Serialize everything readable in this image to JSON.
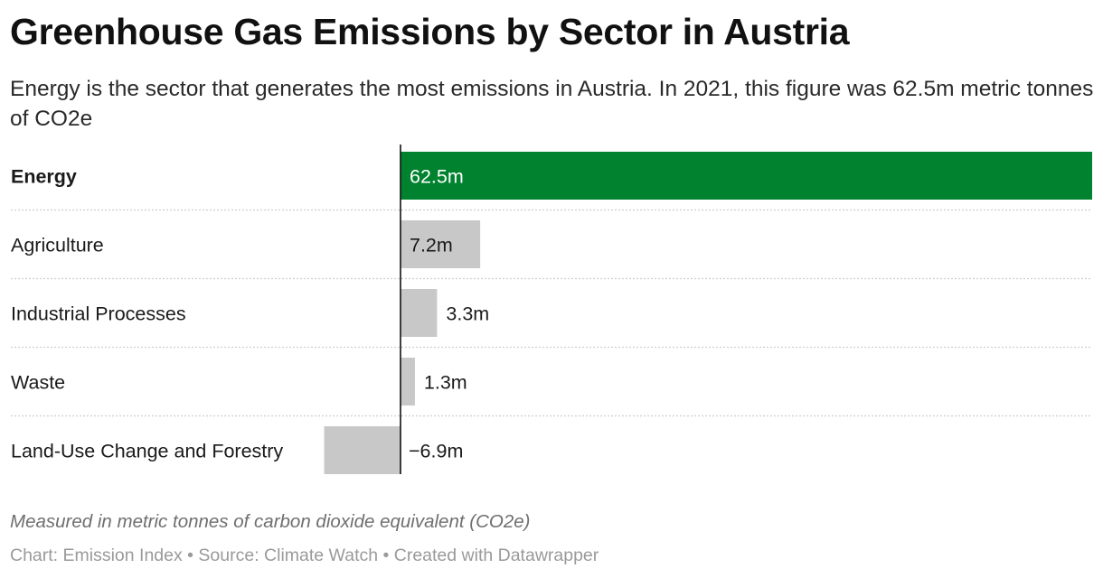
{
  "header": {
    "title": "Greenhouse Gas Emissions by Sector in Austria",
    "subtitle": "Energy is the sector that generates the most emissions in Austria. In 2021, this figure was 62.5m metric tonnes of CO2e"
  },
  "chart_data": {
    "type": "bar",
    "orientation": "horizontal",
    "title": "Greenhouse Gas Emissions by Sector in Austria",
    "xlabel": "",
    "ylabel": "",
    "categories": [
      "Energy",
      "Agriculture",
      "Industrial Processes",
      "Waste",
      "Land-Use Change and Forestry"
    ],
    "values": [
      62.5,
      7.2,
      3.3,
      1.3,
      -6.9
    ],
    "value_labels": [
      "62.5m",
      "7.2m",
      "3.3m",
      "1.3m",
      "−6.9m"
    ],
    "highlight": [
      "Energy"
    ],
    "xlim": [
      -6.9,
      62.5
    ],
    "grid": false,
    "colors": {
      "highlight": "#00822f",
      "default": "#c8c8c8",
      "baseline": "#111111",
      "separator": "#cfcfcf"
    }
  },
  "footer": {
    "note": "Measured in metric tonnes of carbon dioxide equivalent (CO2e)",
    "credits": "Chart: Emission Index • Source: Climate Watch • Created with Datawrapper"
  }
}
